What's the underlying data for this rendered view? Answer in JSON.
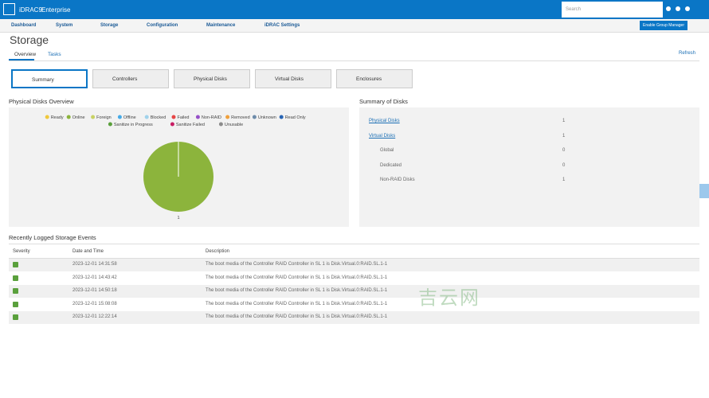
{
  "header": {
    "product": "iDRAC9",
    "edition": "Enterprise",
    "search_placeholder": "Search"
  },
  "nav": [
    "Dashboard",
    "System",
    "Storage",
    "Configuration",
    "Maintenance",
    "iDRAC Settings"
  ],
  "enable_group_manager": "Enable Group Manager",
  "page": {
    "title": "Storage",
    "tabs": [
      "Overview",
      "Tasks"
    ],
    "refresh": "Refresh"
  },
  "subtabs": [
    "Summary",
    "Controllers",
    "Physical Disks",
    "Virtual Disks",
    "Enclosures"
  ],
  "disks_overview": {
    "title": "Physical Disks Overview",
    "legend": [
      {
        "name": "Ready",
        "color": "#f0c83c"
      },
      {
        "name": "Online",
        "color": "#8cb43c"
      },
      {
        "name": "Foreign",
        "color": "#c8d264"
      },
      {
        "name": "Offline",
        "color": "#46aae6"
      },
      {
        "name": "Blocked",
        "color": "#a0d2eb"
      },
      {
        "name": "Failed",
        "color": "#e64646"
      },
      {
        "name": "Non-RAID",
        "color": "#9650c8"
      },
      {
        "name": "Removed",
        "color": "#f0a03c"
      },
      {
        "name": "Unknown",
        "color": "#6e8caa"
      },
      {
        "name": "Read Only",
        "color": "#2864b4"
      },
      {
        "name": "Sanitize in Progress",
        "color": "#5aa03c"
      },
      {
        "name": "Sanitize Failed",
        "color": "#c81e64"
      },
      {
        "name": "Unusable",
        "color": "#8c8c8c"
      }
    ],
    "pie": {
      "type": "pie",
      "slices": [
        {
          "legend_index": 1,
          "value": 1
        }
      ]
    }
  },
  "summary": {
    "title": "Summary of Disks",
    "rows": [
      [
        "Physical Disks",
        1
      ],
      [
        "Virtual Disks",
        1
      ],
      [
        "Global",
        0
      ],
      [
        "Dedicated",
        0
      ],
      [
        "Non-RAID Disks",
        1
      ]
    ]
  },
  "events": {
    "title": "Recently Logged Storage Events",
    "columns": [
      "Severity",
      "Date and Time",
      "Description"
    ],
    "rows": [
      [
        "2023-12-01 14:31:58",
        "The boot media of the Controller RAID Controller in SL 1 is Disk.Virtual.0:RAID.SL.1-1"
      ],
      [
        "2023-12-01 14:43:42",
        "The boot media of the Controller RAID Controller in SL 1 is Disk.Virtual.0:RAID.SL.1-1"
      ],
      [
        "2023-12-01 14:50:18",
        "The boot media of the Controller RAID Controller in SL 1 is Disk.Virtual.0:RAID.SL.1-1"
      ],
      [
        "2023-12-01 15:08:08",
        "The boot media of the Controller RAID Controller in SL 1 is Disk.Virtual.0:RAID.SL.1-1"
      ],
      [
        "2023-12-01 12:22:14",
        "The boot media of the Controller RAID Controller in SL 1 is Disk.Virtual.0:RAID.SL.1-1"
      ]
    ]
  },
  "watermark": "吉云网"
}
